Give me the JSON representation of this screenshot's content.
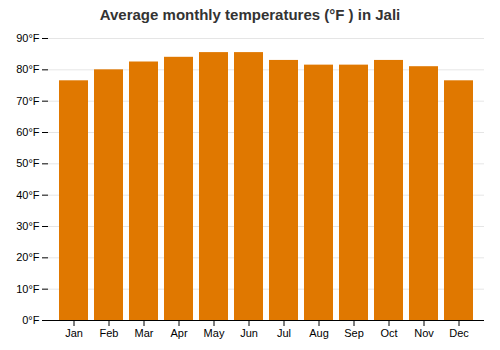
{
  "chart_data": {
    "type": "bar",
    "title": "Average monthly temperatures (°F ) in Jali",
    "categories": [
      "Jan",
      "Feb",
      "Mar",
      "Apr",
      "May",
      "Jun",
      "Jul",
      "Aug",
      "Sep",
      "Oct",
      "Nov",
      "Dec"
    ],
    "values": [
      76.5,
      80.0,
      82.5,
      84.0,
      85.5,
      85.5,
      83.0,
      81.5,
      81.5,
      83.0,
      81.0,
      76.5
    ],
    "color": "#E07800",
    "ylim": [
      0,
      90
    ],
    "yticks": [
      {
        "value": 0,
        "label": "0°F"
      },
      {
        "value": 10,
        "label": "10°F"
      },
      {
        "value": 20,
        "label": "20°F"
      },
      {
        "value": 30,
        "label": "30°F"
      },
      {
        "value": 40,
        "label": "40°F"
      },
      {
        "value": 50,
        "label": "50°F"
      },
      {
        "value": 60,
        "label": "60°F"
      },
      {
        "value": 70,
        "label": "70°F"
      },
      {
        "value": 80,
        "label": "80°F"
      },
      {
        "value": 90,
        "label": "90°F"
      }
    ],
    "grid": true
  }
}
